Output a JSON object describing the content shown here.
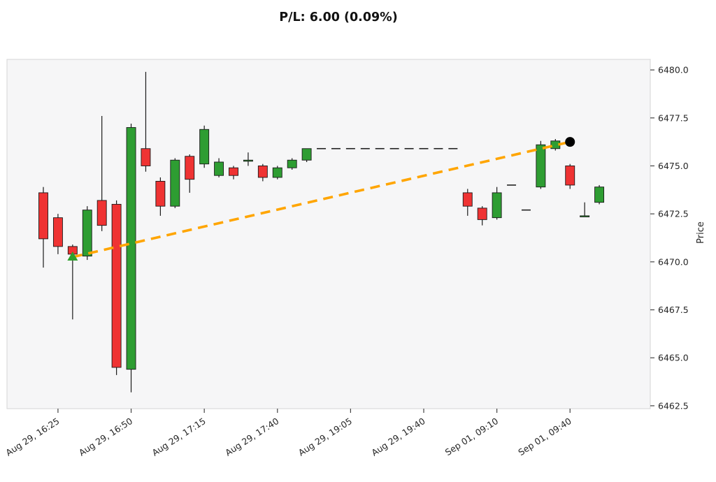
{
  "chart": {
    "title": "P/L: 6.00 (0.09%)"
  },
  "chart_data": {
    "type": "candlestick",
    "title": "P/L: 6.00 (0.09%)",
    "xlabel": "",
    "ylabel": "Price",
    "ylabel_side": "right",
    "ylim": [
      6462.35,
      6480.55
    ],
    "grid": false,
    "slots": 40,
    "y_ticks": [
      6480.0,
      6477.5,
      6475.0,
      6472.5,
      6470.0,
      6467.5,
      6465.0,
      6462.5
    ],
    "x_ticks": [
      {
        "slot": 1,
        "label": "Aug 29, 16:25"
      },
      {
        "slot": 6,
        "label": "Aug 29, 16:50"
      },
      {
        "slot": 11,
        "label": "Aug 29, 17:15"
      },
      {
        "slot": 16,
        "label": "Aug 29, 17:40"
      },
      {
        "slot": 21,
        "label": "Aug 29, 19:05"
      },
      {
        "slot": 26,
        "label": "Aug 29, 19:40"
      },
      {
        "slot": 31,
        "label": "Sep 01, 09:10"
      },
      {
        "slot": 36,
        "label": "Sep 01, 09:40"
      }
    ],
    "candles": [
      [
        6473.6,
        6473.9,
        6469.7,
        6471.2
      ],
      [
        6472.3,
        6472.5,
        6470.4,
        6470.8
      ],
      [
        6470.8,
        6470.9,
        6467.0,
        6470.4
      ],
      [
        6470.3,
        6472.9,
        6470.1,
        6472.7
      ],
      [
        6473.2,
        6477.6,
        6471.6,
        6471.9
      ],
      [
        6473.0,
        6473.2,
        6464.1,
        6464.5
      ],
      [
        6464.4,
        6477.2,
        6463.2,
        6477.0
      ],
      [
        6475.9,
        6479.9,
        6474.7,
        6475.0
      ],
      [
        6474.2,
        6474.4,
        6472.4,
        6472.9
      ],
      [
        6472.9,
        6475.4,
        6472.8,
        6475.3
      ],
      [
        6475.5,
        6475.6,
        6473.6,
        6474.3
      ],
      [
        6475.1,
        6477.1,
        6474.9,
        6476.9
      ],
      [
        6474.5,
        6475.4,
        6474.4,
        6475.2
      ],
      [
        6474.9,
        6475.0,
        6474.3,
        6474.5
      ],
      [
        6475.3,
        6475.7,
        6475.0,
        6475.3
      ],
      [
        6475.0,
        6475.1,
        6474.2,
        6474.4
      ],
      [
        6474.4,
        6475.0,
        6474.3,
        6474.9
      ],
      [
        6474.9,
        6475.4,
        6474.8,
        6475.3
      ],
      [
        6475.3,
        6475.9,
        6475.2,
        6475.9
      ],
      [
        6475.9,
        6475.9,
        6475.9,
        6475.9
      ],
      [
        6475.9,
        6475.9,
        6475.9,
        6475.9
      ],
      [
        6475.9,
        6475.9,
        6475.9,
        6475.9
      ],
      [
        6475.9,
        6475.9,
        6475.9,
        6475.9
      ],
      [
        6475.9,
        6475.9,
        6475.9,
        6475.9
      ],
      [
        6475.9,
        6475.9,
        6475.9,
        6475.9
      ],
      [
        6475.9,
        6475.9,
        6475.9,
        6475.9
      ],
      [
        6475.9,
        6475.9,
        6475.9,
        6475.9
      ],
      [
        6475.9,
        6475.9,
        6475.9,
        6475.9
      ],
      [
        6475.9,
        6475.9,
        6475.9,
        6475.9
      ],
      [
        6473.6,
        6473.8,
        6472.4,
        6472.9
      ],
      [
        6472.8,
        6472.9,
        6471.9,
        6472.2
      ],
      [
        6472.3,
        6473.9,
        6472.2,
        6473.6
      ],
      [
        6474.0,
        6474.0,
        6474.0,
        6474.0
      ],
      [
        6472.7,
        6472.7,
        6472.7,
        6472.7
      ],
      [
        6473.9,
        6476.3,
        6473.8,
        6476.1
      ],
      [
        6475.9,
        6476.4,
        6475.8,
        6476.3
      ],
      [
        6475.0,
        6475.1,
        6473.8,
        6474.0
      ],
      [
        6472.4,
        6473.1,
        6472.4,
        6472.4
      ],
      [
        6473.1,
        6474.0,
        6473.0,
        6473.9
      ],
      null
    ],
    "trade": {
      "pnl": 6.0,
      "pnl_pct": 0.09,
      "entry": {
        "slot": 2,
        "price": 6470.25,
        "marker": "triangle-up",
        "color": "#2ca02c"
      },
      "exit": {
        "slot": 36,
        "price": 6476.25,
        "marker": "circle",
        "color": "#000000"
      },
      "line_color": "#ffa500",
      "line_style": "dashed"
    },
    "colors": {
      "up": "#2e9d32",
      "down": "#ef3333",
      "edge": "#1a1a1a",
      "wick": "#1a1a1a",
      "flat": "#222222",
      "panel_bg": "#f6f6f7",
      "panel_border": "#d4d4d4",
      "tick": "#444444"
    }
  }
}
